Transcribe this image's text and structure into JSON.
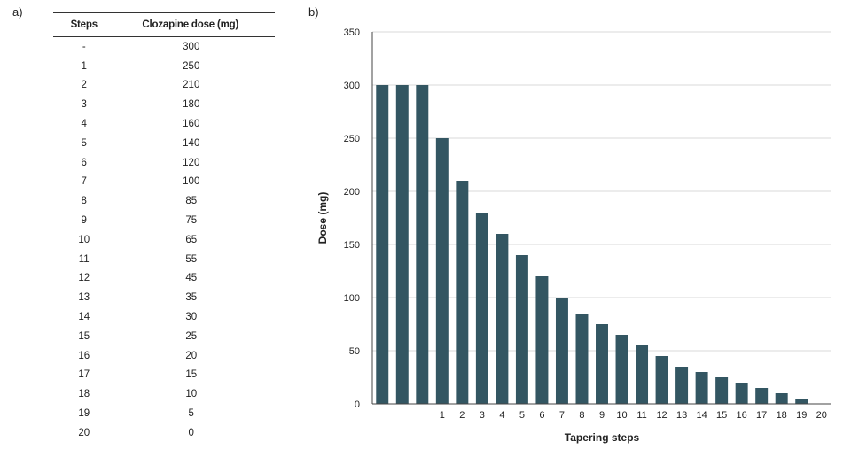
{
  "panels": {
    "a": "a)",
    "b": "b)"
  },
  "table": {
    "headers": [
      "Steps",
      "Clozapine dose (mg)"
    ],
    "rows": [
      [
        "-",
        "300"
      ],
      [
        "1",
        "250"
      ],
      [
        "2",
        "210"
      ],
      [
        "3",
        "180"
      ],
      [
        "4",
        "160"
      ],
      [
        "5",
        "140"
      ],
      [
        "6",
        "120"
      ],
      [
        "7",
        "100"
      ],
      [
        "8",
        "85"
      ],
      [
        "9",
        "75"
      ],
      [
        "10",
        "65"
      ],
      [
        "11",
        "55"
      ],
      [
        "12",
        "45"
      ],
      [
        "13",
        "35"
      ],
      [
        "14",
        "30"
      ],
      [
        "15",
        "25"
      ],
      [
        "16",
        "20"
      ],
      [
        "17",
        "15"
      ],
      [
        "18",
        "10"
      ],
      [
        "19",
        "5"
      ],
      [
        "20",
        "0"
      ]
    ]
  },
  "chart_data": {
    "type": "bar",
    "categories": [
      "",
      "",
      "",
      "1",
      "2",
      "3",
      "4",
      "5",
      "6",
      "7",
      "8",
      "9",
      "10",
      "11",
      "12",
      "13",
      "14",
      "15",
      "16",
      "17",
      "18",
      "19",
      "20"
    ],
    "values": [
      300,
      300,
      300,
      250,
      210,
      180,
      160,
      140,
      120,
      100,
      85,
      75,
      65,
      55,
      45,
      35,
      30,
      25,
      20,
      15,
      10,
      5,
      0
    ],
    "xlabel": "Tapering steps",
    "ylabel": "Dose (mg)",
    "ylim": [
      0,
      350
    ],
    "yticks": [
      0,
      50,
      100,
      150,
      200,
      250,
      300,
      350
    ],
    "grid": true,
    "bar_color": "#335662",
    "grid_color": "#d9d9d9"
  }
}
